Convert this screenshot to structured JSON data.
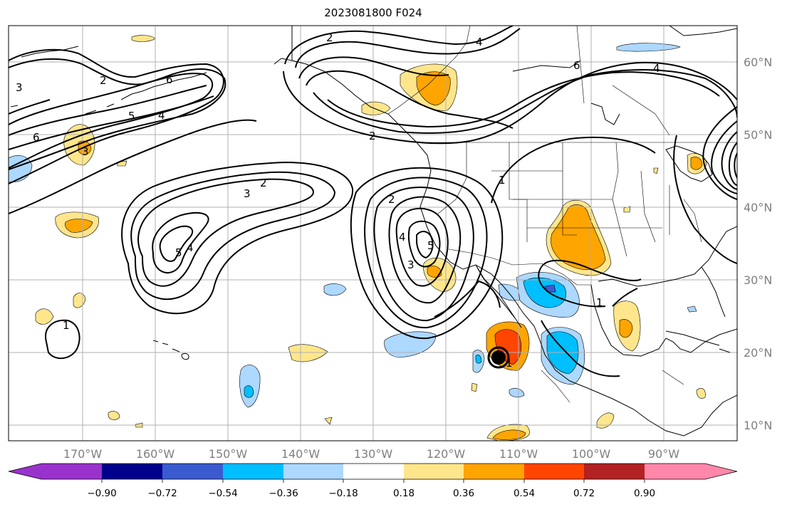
{
  "title": "2023081800 F024",
  "map": {
    "lon_labels": [
      "170°W",
      "160°W",
      "150°W",
      "140°W",
      "130°W",
      "120°W",
      "110°W",
      "100°W",
      "90°W"
    ],
    "lat_labels": [
      "60°N",
      "50°N",
      "40°N",
      "30°N",
      "20°N",
      "10°N"
    ],
    "contour_labels": [
      "2",
      "3",
      "4",
      "5",
      "6",
      "1"
    ]
  },
  "colorbar": {
    "ticks": [
      "−0.90",
      "−0.72",
      "−0.54",
      "−0.36",
      "−0.18",
      "0.18",
      "0.36",
      "0.54",
      "0.72",
      "0.90"
    ],
    "colors": [
      "#9932cc",
      "#00008b",
      "#3a5bd0",
      "#00bfff",
      "#add8ff",
      "#ffffff",
      "#ffe68c",
      "#ffa500",
      "#ff4500",
      "#b22222",
      "#ff88aa"
    ]
  }
}
